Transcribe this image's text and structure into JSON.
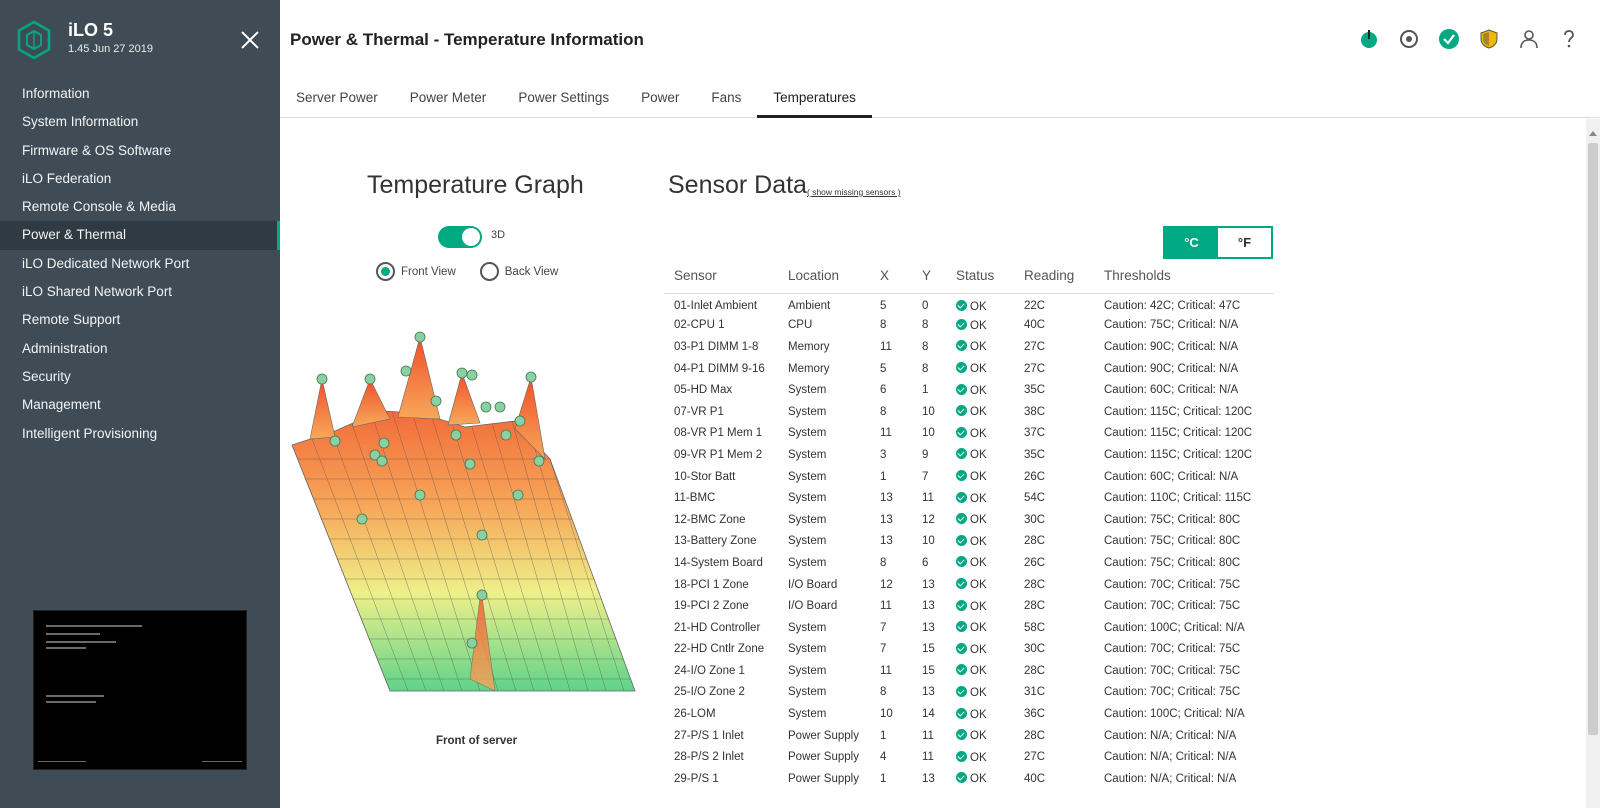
{
  "app": {
    "name": "iLO 5",
    "version": "1.45 Jun 27 2019"
  },
  "sidebar": {
    "items": [
      {
        "label": "Information"
      },
      {
        "label": "System Information"
      },
      {
        "label": "Firmware & OS Software"
      },
      {
        "label": "iLO Federation"
      },
      {
        "label": "Remote Console & Media"
      },
      {
        "label": "Power & Thermal",
        "active": true
      },
      {
        "label": "iLO Dedicated Network Port"
      },
      {
        "label": "iLO Shared Network Port"
      },
      {
        "label": "Remote Support"
      },
      {
        "label": "Administration"
      },
      {
        "label": "Security"
      },
      {
        "label": "Management"
      },
      {
        "label": "Intelligent Provisioning"
      }
    ]
  },
  "header": {
    "title": "Power & Thermal - Temperature Information",
    "icons": [
      "power-icon",
      "locator-icon",
      "health-ok-icon",
      "security-shield-icon",
      "user-icon",
      "help-icon"
    ],
    "colors": {
      "accent": "#01a982",
      "shield": "#f2b600"
    }
  },
  "tabs": [
    {
      "label": "Server Power"
    },
    {
      "label": "Power Meter"
    },
    {
      "label": "Power Settings"
    },
    {
      "label": "Power"
    },
    {
      "label": "Fans"
    },
    {
      "label": "Temperatures",
      "active": true
    }
  ],
  "graph": {
    "title": "Temperature Graph",
    "toggle_label": "3D",
    "toggle_on": true,
    "front_view": "Front View",
    "back_view": "Back View",
    "selected_view": "Front View",
    "caption": "Front of server"
  },
  "sensor_panel": {
    "title": "Sensor Data",
    "missing_link": "( show missing sensors )",
    "unit_c": "°C",
    "unit_f": "°F",
    "selected_unit": "°C",
    "columns": [
      "Sensor",
      "Location",
      "X",
      "Y",
      "Status",
      "Reading",
      "Thresholds"
    ],
    "rows": [
      [
        "01-Inlet Ambient",
        "Ambient",
        "5",
        "0",
        "OK",
        "22C",
        "Caution: 42C; Critical: 47C"
      ],
      [
        "02-CPU 1",
        "CPU",
        "8",
        "8",
        "OK",
        "40C",
        "Caution: 75C; Critical: N/A"
      ],
      [
        "03-P1 DIMM 1-8",
        "Memory",
        "11",
        "8",
        "OK",
        "27C",
        "Caution: 90C; Critical: N/A"
      ],
      [
        "04-P1 DIMM 9-16",
        "Memory",
        "5",
        "8",
        "OK",
        "27C",
        "Caution: 90C; Critical: N/A"
      ],
      [
        "05-HD Max",
        "System",
        "6",
        "1",
        "OK",
        "35C",
        "Caution: 60C; Critical: N/A"
      ],
      [
        "07-VR P1",
        "System",
        "8",
        "10",
        "OK",
        "38C",
        "Caution: 115C; Critical: 120C"
      ],
      [
        "08-VR P1 Mem 1",
        "System",
        "11",
        "10",
        "OK",
        "37C",
        "Caution: 115C; Critical: 120C"
      ],
      [
        "09-VR P1 Mem 2",
        "System",
        "3",
        "9",
        "OK",
        "35C",
        "Caution: 115C; Critical: 120C"
      ],
      [
        "10-Stor Batt",
        "System",
        "1",
        "7",
        "OK",
        "26C",
        "Caution: 60C; Critical: N/A"
      ],
      [
        "11-BMC",
        "System",
        "13",
        "11",
        "OK",
        "54C",
        "Caution: 110C; Critical: 115C"
      ],
      [
        "12-BMC Zone",
        "System",
        "13",
        "12",
        "OK",
        "30C",
        "Caution: 75C; Critical: 80C"
      ],
      [
        "13-Battery Zone",
        "System",
        "13",
        "10",
        "OK",
        "28C",
        "Caution: 75C; Critical: 80C"
      ],
      [
        "14-System Board",
        "System",
        "8",
        "6",
        "OK",
        "26C",
        "Caution: 75C; Critical: 80C"
      ],
      [
        "18-PCI 1 Zone",
        "I/O Board",
        "12",
        "13",
        "OK",
        "28C",
        "Caution: 70C; Critical: 75C"
      ],
      [
        "19-PCI 2 Zone",
        "I/O Board",
        "11",
        "13",
        "OK",
        "28C",
        "Caution: 70C; Critical: 75C"
      ],
      [
        "21-HD Controller",
        "System",
        "7",
        "13",
        "OK",
        "58C",
        "Caution: 100C; Critical: N/A"
      ],
      [
        "22-HD Cntlr Zone",
        "System",
        "7",
        "15",
        "OK",
        "30C",
        "Caution: 70C; Critical: 75C"
      ],
      [
        "24-I/O Zone 1",
        "System",
        "11",
        "15",
        "OK",
        "28C",
        "Caution: 70C; Critical: 75C"
      ],
      [
        "25-I/O Zone 2",
        "System",
        "8",
        "13",
        "OK",
        "31C",
        "Caution: 70C; Critical: 75C"
      ],
      [
        "26-LOM",
        "System",
        "10",
        "14",
        "OK",
        "36C",
        "Caution: 100C; Critical: N/A"
      ],
      [
        "27-P/S 1 Inlet",
        "Power Supply",
        "1",
        "11",
        "OK",
        "28C",
        "Caution: N/A; Critical: N/A"
      ],
      [
        "28-P/S 2 Inlet",
        "Power Supply",
        "4",
        "11",
        "OK",
        "27C",
        "Caution: N/A; Critical: N/A"
      ],
      [
        "29-P/S 1",
        "Power Supply",
        "1",
        "13",
        "OK",
        "40C",
        "Caution: N/A; Critical: N/A"
      ]
    ]
  }
}
